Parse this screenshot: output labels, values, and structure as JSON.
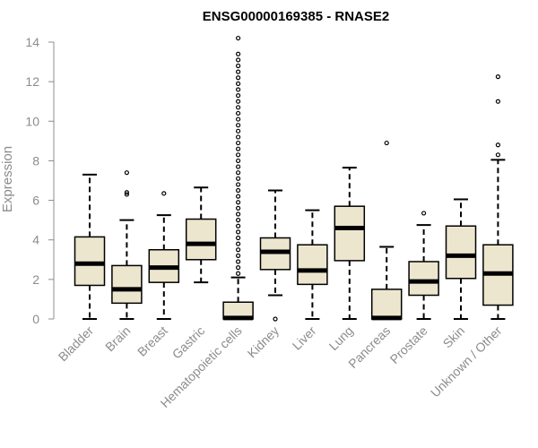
{
  "chart_data": {
    "type": "boxplot",
    "title": "ENSG00000169385 - RNASE2",
    "xlabel": "",
    "ylabel": "Expression",
    "ylim": [
      0,
      14
    ],
    "yticks": [
      0,
      2,
      4,
      6,
      8,
      10,
      12,
      14
    ],
    "grid": false,
    "legend": "none",
    "box_fill": "#ede6cf",
    "box_stroke": "#000000",
    "axis_color": "#8c8c8c",
    "categories": [
      "Bladder",
      "Brain",
      "Breast",
      "Gastric",
      "Hematopoietic cells",
      "Kidney",
      "Liver",
      "Lung",
      "Pancreas",
      "Prostate",
      "Skin",
      "Unknown / Other"
    ],
    "boxes": [
      {
        "category": "Bladder",
        "whisker_low": 0.0,
        "q1": 1.7,
        "median": 2.8,
        "q3": 4.15,
        "whisker_high": 7.3,
        "outliers": []
      },
      {
        "category": "Brain",
        "whisker_low": 0.0,
        "q1": 0.8,
        "median": 1.5,
        "q3": 2.7,
        "whisker_high": 5.0,
        "outliers": [
          6.3,
          6.4,
          7.4
        ]
      },
      {
        "category": "Breast",
        "whisker_low": 0.0,
        "q1": 1.85,
        "median": 2.6,
        "q3": 3.5,
        "whisker_high": 5.25,
        "outliers": [
          6.35
        ]
      },
      {
        "category": "Gastric",
        "whisker_low": 1.85,
        "q1": 3.0,
        "median": 3.8,
        "q3": 5.05,
        "whisker_high": 6.65,
        "outliers": []
      },
      {
        "category": "Hematopoietic cells",
        "whisker_low": 0.0,
        "q1": 0.0,
        "median": 0.05,
        "q3": 0.85,
        "whisker_high": 2.1,
        "outliers": [
          2.3,
          2.6,
          2.9,
          3.2,
          3.5,
          3.8,
          4.1,
          4.4,
          4.7,
          5.0,
          5.3,
          5.6,
          5.9,
          6.2,
          6.5,
          6.8,
          7.1,
          7.4,
          7.7,
          8.0,
          8.3,
          8.6,
          8.9,
          9.2,
          9.5,
          9.8,
          10.1,
          10.4,
          10.7,
          11.0,
          11.3,
          11.6,
          11.9,
          12.2,
          12.5,
          12.8,
          13.1,
          13.4,
          14.2
        ]
      },
      {
        "category": "Kidney",
        "whisker_low": 1.2,
        "q1": 2.5,
        "median": 3.4,
        "q3": 4.1,
        "whisker_high": 6.5,
        "outliers": [
          0.0
        ]
      },
      {
        "category": "Liver",
        "whisker_low": 0.0,
        "q1": 1.75,
        "median": 2.45,
        "q3": 3.75,
        "whisker_high": 5.5,
        "outliers": []
      },
      {
        "category": "Lung",
        "whisker_low": 0.0,
        "q1": 2.95,
        "median": 4.6,
        "q3": 5.7,
        "whisker_high": 7.65,
        "outliers": []
      },
      {
        "category": "Pancreas",
        "whisker_low": 0.0,
        "q1": 0.0,
        "median": 0.05,
        "q3": 1.5,
        "whisker_high": 3.65,
        "outliers": [
          8.9
        ]
      },
      {
        "category": "Prostate",
        "whisker_low": 0.0,
        "q1": 1.2,
        "median": 1.9,
        "q3": 2.9,
        "whisker_high": 4.75,
        "outliers": [
          5.35
        ]
      },
      {
        "category": "Skin",
        "whisker_low": 0.0,
        "q1": 2.05,
        "median": 3.2,
        "q3": 4.7,
        "whisker_high": 6.05,
        "outliers": []
      },
      {
        "category": "Unknown / Other",
        "whisker_low": 0.0,
        "q1": 0.7,
        "median": 2.3,
        "q3": 3.75,
        "whisker_high": 8.05,
        "outliers": [
          8.3,
          8.8,
          11.0,
          12.25
        ]
      }
    ]
  }
}
